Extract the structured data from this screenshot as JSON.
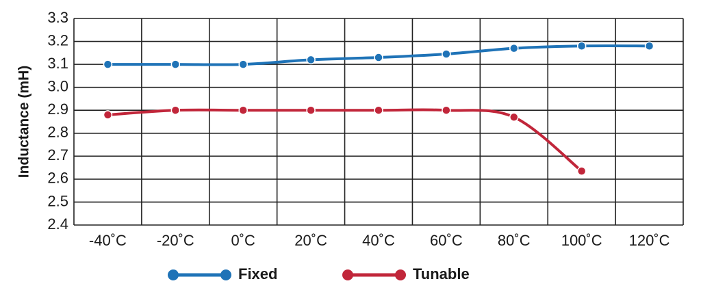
{
  "chart_data": {
    "type": "line",
    "y_label": "Inductance (mH)",
    "categories": [
      "-40˚C",
      "-20˚C",
      "0˚C",
      "20˚C",
      "40˚C",
      "60˚C",
      "80˚C",
      "100˚C",
      "120˚C"
    ],
    "series": [
      {
        "name": "Fixed",
        "color": "#1f73b7",
        "values": [
          3.1,
          3.1,
          3.1,
          3.12,
          3.13,
          3.145,
          3.17,
          3.18,
          3.18
        ]
      },
      {
        "name": "Tunable",
        "color": "#c1263a",
        "values": [
          2.88,
          2.9,
          2.9,
          2.9,
          2.9,
          2.9,
          2.87,
          2.635,
          null
        ]
      }
    ],
    "ylim": [
      2.4,
      3.3
    ],
    "yticks": [
      2.4,
      2.5,
      2.6,
      2.7,
      2.8,
      2.9,
      {
        "value": 3,
        "label": "3.0"
      },
      3.1,
      3.2,
      3.3
    ],
    "grid": true,
    "legend": "bottom"
  }
}
